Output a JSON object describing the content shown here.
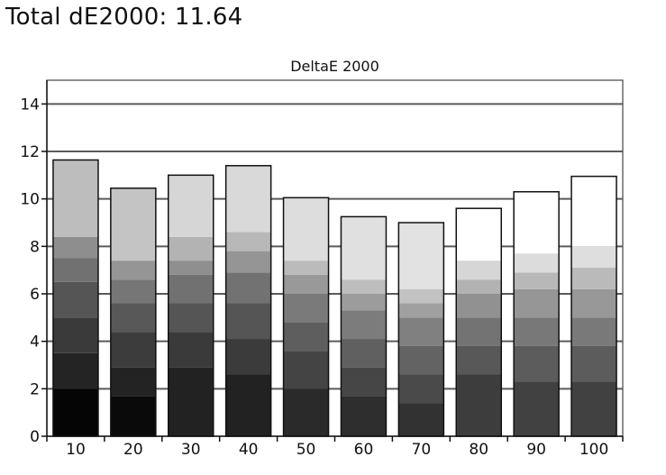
{
  "header": {
    "title": "Total dE2000: 11.64"
  },
  "chart_data": {
    "type": "bar",
    "title": "DeltaE 2000",
    "xlabel": "",
    "ylabel": "",
    "categories": [
      "10",
      "20",
      "30",
      "40",
      "50",
      "60",
      "70",
      "80",
      "90",
      "100"
    ],
    "values": [
      11.64,
      10.45,
      11.0,
      11.4,
      10.05,
      9.25,
      9.0,
      9.6,
      10.3,
      10.95
    ],
    "ylim": [
      0,
      15
    ],
    "yticks": [
      "0",
      "2",
      "4",
      "6",
      "8",
      "10",
      "12",
      "14"
    ],
    "grid": true,
    "bar_fill_bands": [
      [
        {
          "to": 2.0,
          "color": "#050505"
        },
        {
          "to": 3.5,
          "color": "#242424"
        },
        {
          "to": 5.0,
          "color": "#3a3a3a"
        },
        {
          "to": 6.5,
          "color": "#555555"
        },
        {
          "to": 7.5,
          "color": "#717171"
        },
        {
          "to": 8.4,
          "color": "#8e8e8e"
        },
        {
          "to": 11.64,
          "color": "#bdbdbd"
        }
      ],
      [
        {
          "to": 1.7,
          "color": "#0a0a0a"
        },
        {
          "to": 2.9,
          "color": "#232323"
        },
        {
          "to": 4.4,
          "color": "#3c3c3c"
        },
        {
          "to": 5.6,
          "color": "#585858"
        },
        {
          "to": 6.6,
          "color": "#767676"
        },
        {
          "to": 7.4,
          "color": "#959595"
        },
        {
          "to": 10.45,
          "color": "#c4c4c4"
        }
      ],
      [
        {
          "to": 2.9,
          "color": "#222222"
        },
        {
          "to": 4.4,
          "color": "#3a3a3a"
        },
        {
          "to": 5.6,
          "color": "#555555"
        },
        {
          "to": 6.8,
          "color": "#717171"
        },
        {
          "to": 7.4,
          "color": "#8f8f8f"
        },
        {
          "to": 8.4,
          "color": "#b3b3b3"
        },
        {
          "to": 11.0,
          "color": "#d6d6d6"
        }
      ],
      [
        {
          "to": 2.6,
          "color": "#222222"
        },
        {
          "to": 4.1,
          "color": "#3b3b3b"
        },
        {
          "to": 5.6,
          "color": "#555555"
        },
        {
          "to": 6.9,
          "color": "#727272"
        },
        {
          "to": 7.8,
          "color": "#959595"
        },
        {
          "to": 8.6,
          "color": "#b8b8b8"
        },
        {
          "to": 11.4,
          "color": "#d9d9d9"
        }
      ],
      [
        {
          "to": 2.0,
          "color": "#2a2a2a"
        },
        {
          "to": 3.6,
          "color": "#444444"
        },
        {
          "to": 4.8,
          "color": "#5e5e5e"
        },
        {
          "to": 6.0,
          "color": "#7a7a7a"
        },
        {
          "to": 6.8,
          "color": "#999999"
        },
        {
          "to": 7.4,
          "color": "#bbbbbb"
        },
        {
          "to": 10.05,
          "color": "#dddddd"
        }
      ],
      [
        {
          "to": 1.7,
          "color": "#2e2e2e"
        },
        {
          "to": 2.9,
          "color": "#464646"
        },
        {
          "to": 4.1,
          "color": "#606060"
        },
        {
          "to": 5.3,
          "color": "#7c7c7c"
        },
        {
          "to": 6.0,
          "color": "#9c9c9c"
        },
        {
          "to": 6.6,
          "color": "#bebebe"
        },
        {
          "to": 9.25,
          "color": "#e0e0e0"
        }
      ],
      [
        {
          "to": 1.4,
          "color": "#323232"
        },
        {
          "to": 2.6,
          "color": "#4a4a4a"
        },
        {
          "to": 3.8,
          "color": "#636363"
        },
        {
          "to": 5.0,
          "color": "#808080"
        },
        {
          "to": 5.6,
          "color": "#a0a0a0"
        },
        {
          "to": 6.2,
          "color": "#c2c2c2"
        },
        {
          "to": 9.0,
          "color": "#e2e2e2"
        }
      ],
      [
        {
          "to": 2.6,
          "color": "#3d3d3d"
        },
        {
          "to": 3.8,
          "color": "#585858"
        },
        {
          "to": 5.0,
          "color": "#737373"
        },
        {
          "to": 6.0,
          "color": "#919191"
        },
        {
          "to": 6.6,
          "color": "#b2b2b2"
        },
        {
          "to": 7.4,
          "color": "#d6d6d6"
        },
        {
          "to": 9.6,
          "color": "#ffffff"
        }
      ],
      [
        {
          "to": 2.3,
          "color": "#414141"
        },
        {
          "to": 3.8,
          "color": "#5c5c5c"
        },
        {
          "to": 5.0,
          "color": "#787878"
        },
        {
          "to": 6.2,
          "color": "#969696"
        },
        {
          "to": 6.9,
          "color": "#b8b8b8"
        },
        {
          "to": 7.7,
          "color": "#dcdcdc"
        },
        {
          "to": 10.3,
          "color": "#ffffff"
        }
      ],
      [
        {
          "to": 2.3,
          "color": "#414141"
        },
        {
          "to": 3.8,
          "color": "#5c5c5c"
        },
        {
          "to": 5.0,
          "color": "#797979"
        },
        {
          "to": 6.2,
          "color": "#989898"
        },
        {
          "to": 7.1,
          "color": "#bababa"
        },
        {
          "to": 8.0,
          "color": "#dedede"
        },
        {
          "to": 10.95,
          "color": "#ffffff"
        }
      ]
    ]
  }
}
